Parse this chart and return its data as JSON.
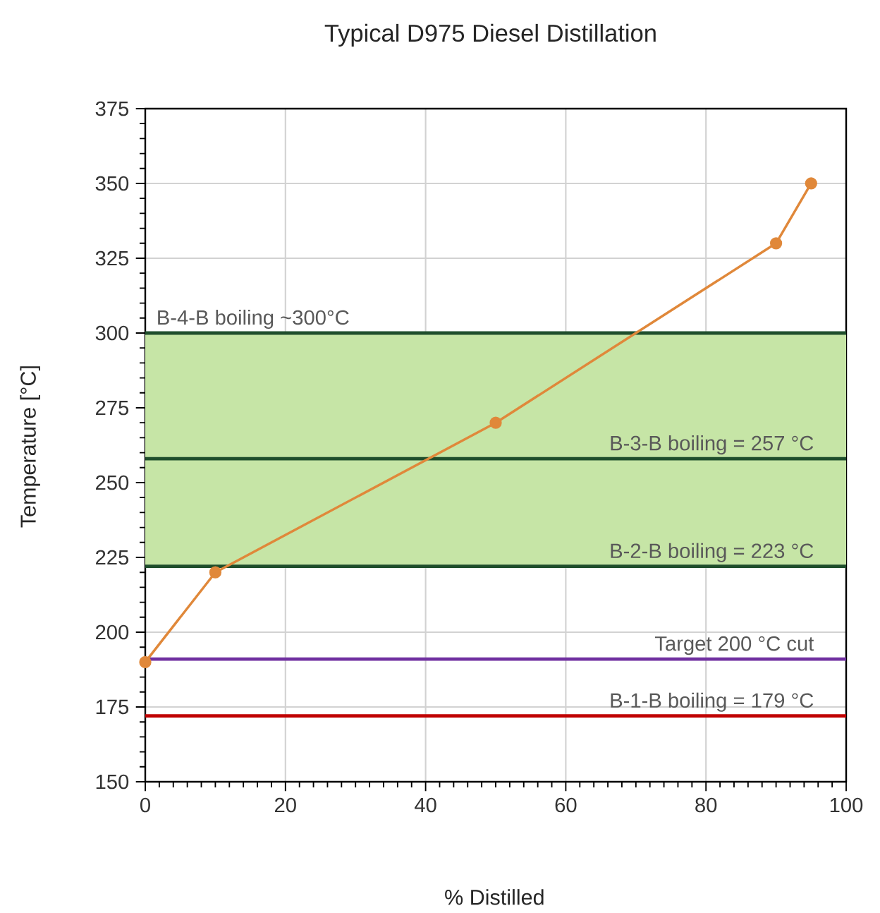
{
  "chart_data": {
    "type": "line",
    "title": "Typical D975 Diesel Distillation",
    "xlabel": "% Distilled",
    "ylabel": "Temperature [°C]",
    "x": [
      0,
      10,
      50,
      90,
      95
    ],
    "series": [
      {
        "color": "#e0883a",
        "values": [
          190,
          220,
          270,
          330,
          350
        ]
      }
    ],
    "marker": "circle",
    "line_style": "solid",
    "xlim": [
      0,
      100
    ],
    "xticks": [
      0,
      20,
      40,
      60,
      80,
      100
    ],
    "ylim": [
      150,
      375
    ],
    "yticks": [
      150,
      175,
      200,
      225,
      250,
      275,
      300,
      325,
      350,
      375
    ],
    "grid": true,
    "bands": [
      {
        "axis": "y",
        "from": 222,
        "to": 300,
        "color": "#c6e5a6"
      }
    ],
    "ref_lines": [
      {
        "axis": "y",
        "value": 300,
        "color": "#1f4e2c"
      },
      {
        "axis": "y",
        "value": 258,
        "color": "#1f4e2c"
      },
      {
        "axis": "y",
        "value": 222,
        "color": "#1f4e2c"
      },
      {
        "axis": "y",
        "value": 191,
        "color": "#7030a0"
      },
      {
        "axis": "y",
        "value": 172,
        "color": "#c00000"
      }
    ],
    "annotations": [
      "B-4-B boiling ~300°C",
      "B-3-B boiling = 257 °C",
      "B-2-B boiling = 223 °C",
      "Target 200 °C cut",
      "B-1-B boiling = 179 °C"
    ]
  }
}
